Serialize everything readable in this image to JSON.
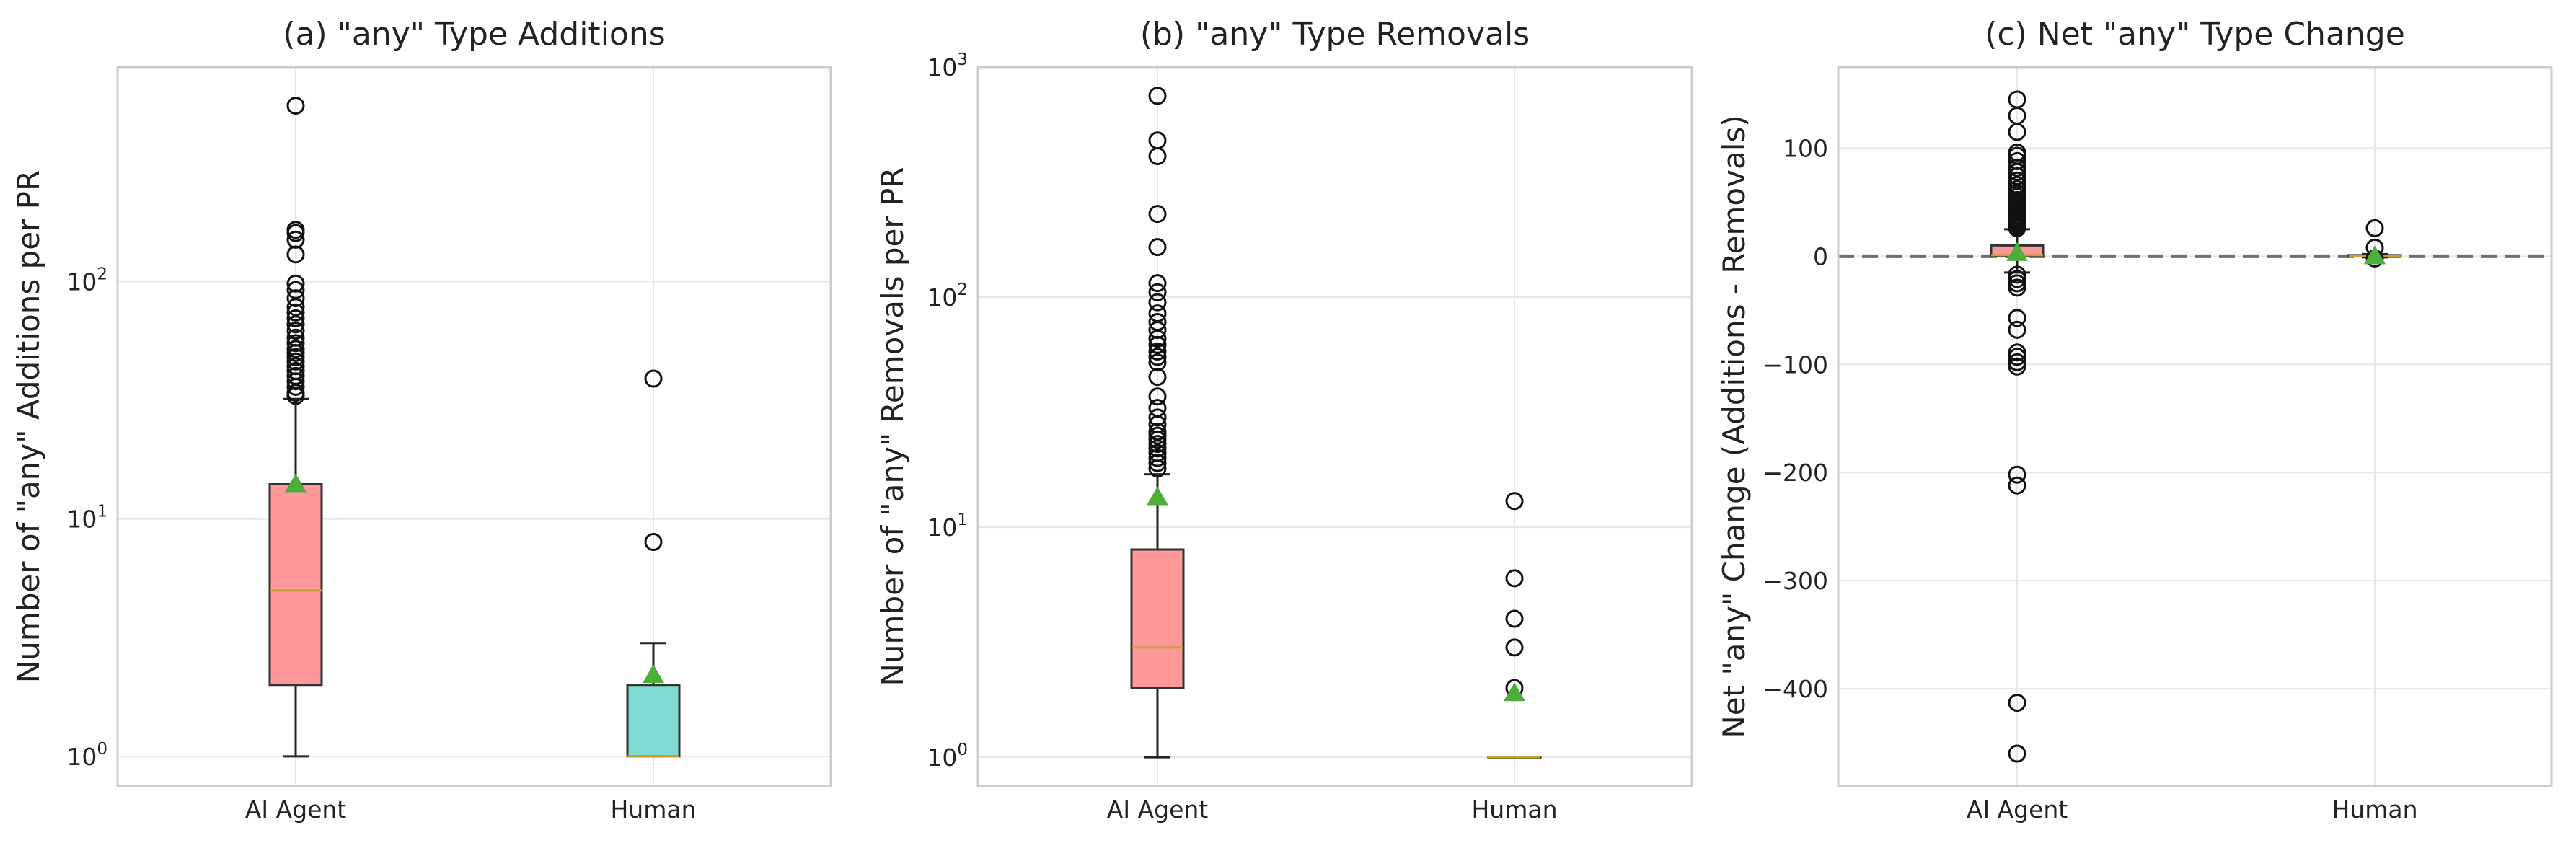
{
  "chart_data": [
    {
      "type": "box",
      "title": "(a) \"any\" Type Additions",
      "xlabel": "",
      "ylabel": "Number of \"any\" Additions per PR",
      "yscale": "log",
      "ylim": [
        0.75,
        800
      ],
      "yticks": [
        {
          "value": 1,
          "base": "10",
          "exp": "0"
        },
        {
          "value": 10,
          "base": "10",
          "exp": "1"
        },
        {
          "value": 100,
          "base": "10",
          "exp": "2"
        }
      ],
      "grid": true,
      "categories": [
        "AI Agent",
        "Human"
      ],
      "boxes": [
        {
          "name": "AI Agent",
          "color": "#ff9999",
          "q1": 2,
          "median": 5,
          "q3": 14,
          "whisker_low": 1,
          "whisker_high": 32,
          "mean": 14,
          "outliers": [
            33,
            34,
            36,
            38,
            40,
            42,
            44,
            46,
            48,
            50,
            52,
            55,
            58,
            62,
            66,
            70,
            74,
            78,
            85,
            92,
            98,
            130,
            150,
            160,
            165,
            550
          ]
        },
        {
          "name": "Human",
          "color": "#7fdcd4",
          "q1": 1,
          "median": 1,
          "q3": 2,
          "whisker_low": 1,
          "whisker_high": 3,
          "mean": 2.2,
          "outliers": [
            8,
            39
          ]
        }
      ]
    },
    {
      "type": "box",
      "title": "(b) \"any\" Type Removals",
      "xlabel": "",
      "ylabel": "Number of \"any\" Removals per PR",
      "yscale": "log",
      "ylim": [
        0.75,
        1000
      ],
      "yticks": [
        {
          "value": 1,
          "base": "10",
          "exp": "0"
        },
        {
          "value": 10,
          "base": "10",
          "exp": "1"
        },
        {
          "value": 100,
          "base": "10",
          "exp": "2"
        },
        {
          "value": 1000,
          "base": "10",
          "exp": "3"
        }
      ],
      "grid": true,
      "categories": [
        "AI Agent",
        "Human"
      ],
      "boxes": [
        {
          "name": "AI Agent",
          "color": "#ff9999",
          "q1": 2,
          "median": 3,
          "q3": 8,
          "whisker_low": 1,
          "whisker_high": 17,
          "mean": 13.5,
          "outliers": [
            18,
            19,
            20,
            21,
            22,
            23,
            24,
            25,
            26,
            28,
            30,
            33,
            37,
            45,
            52,
            55,
            58,
            62,
            66,
            72,
            78,
            85,
            95,
            105,
            115,
            165,
            230,
            410,
            480,
            750
          ]
        },
        {
          "name": "Human",
          "color": "#7fdcd4",
          "q1": 1,
          "median": 1,
          "q3": 1,
          "whisker_low": 1,
          "whisker_high": 1,
          "mean": 1.9,
          "outliers": [
            2,
            3,
            4,
            6,
            13
          ]
        }
      ]
    },
    {
      "type": "box",
      "title": "(c) Net \"any\" Type Change",
      "xlabel": "",
      "ylabel": "Net \"any\" Change (Additions - Removals)",
      "yscale": "linear",
      "ylim": [
        -490,
        175
      ],
      "yticks": [
        {
          "value": -400,
          "label": "−400"
        },
        {
          "value": -300,
          "label": "−300"
        },
        {
          "value": -200,
          "label": "−200"
        },
        {
          "value": -100,
          "label": "−100"
        },
        {
          "value": 0,
          "label": "0"
        },
        {
          "value": 100,
          "label": "100"
        }
      ],
      "grid": true,
      "reference_line": 0,
      "categories": [
        "AI Agent",
        "Human"
      ],
      "boxes": [
        {
          "name": "AI Agent",
          "color": "#ff9999",
          "q1": 0,
          "median": 1,
          "q3": 10,
          "whisker_low": -15,
          "whisker_high": 25,
          "mean": 3,
          "outliers": [
            -460,
            -413,
            -212,
            -202,
            -102,
            -98,
            -93,
            -89,
            -68,
            -57,
            -29,
            -25,
            -21,
            -17,
            26,
            28,
            30,
            32,
            34,
            36,
            38,
            40,
            42,
            44,
            46,
            48,
            50,
            52,
            55,
            58,
            62,
            66,
            70,
            74,
            78,
            82,
            88,
            93,
            96,
            115,
            130,
            145
          ]
        },
        {
          "name": "Human",
          "color": "#7fdcd4",
          "q1": 0,
          "median": 0,
          "q3": 1,
          "whisker_low": -1,
          "whisker_high": 2,
          "mean": 0,
          "outliers": [
            -2,
            8,
            26
          ]
        }
      ]
    }
  ]
}
